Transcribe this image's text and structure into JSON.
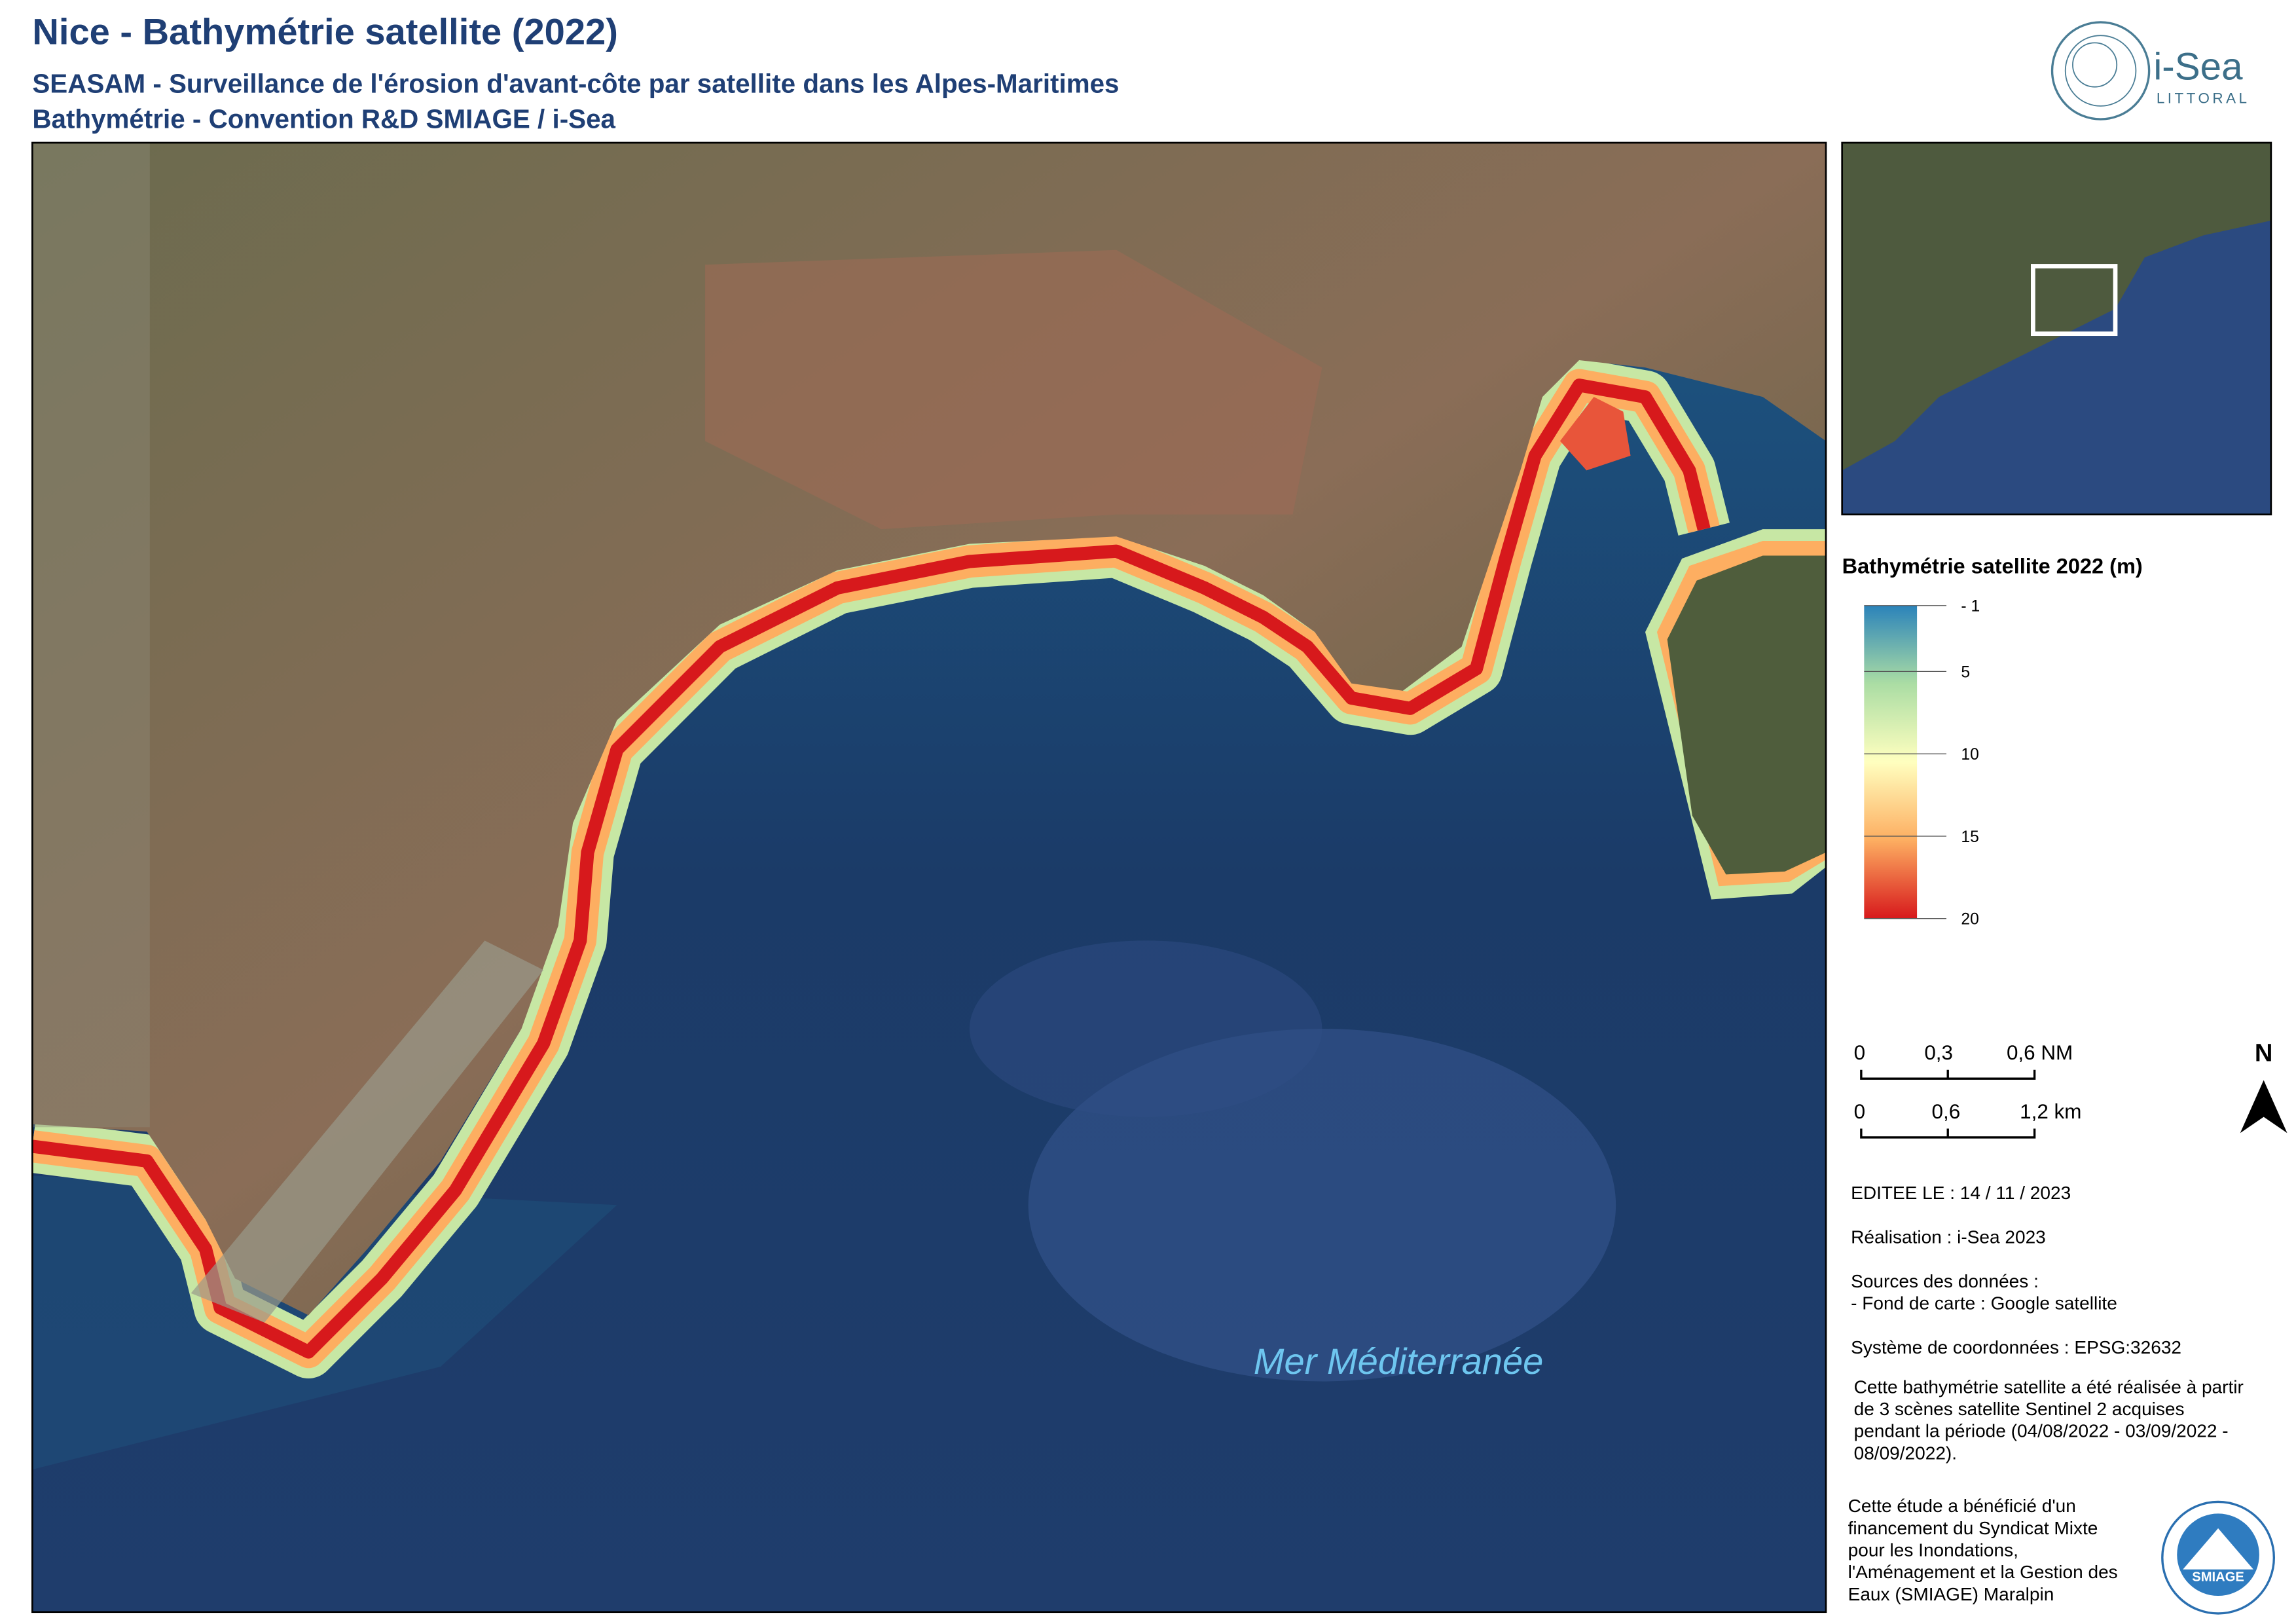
{
  "header": {
    "title": "Nice - Bathymétrie satellite (2022)",
    "subtitle_1": "SEASAM - Surveillance de l'érosion d'avant-côte par satellite dans les Alpes-Maritimes",
    "subtitle_2": "Bathymétrie - Convention R&D SMIAGE / i-Sea"
  },
  "logo": {
    "name": "i-Sea",
    "tagline": "LITTORAL"
  },
  "map": {
    "sea_label": "Mer Méditerranée"
  },
  "legend": {
    "title": "Bathymétrie satellite 2022 (m)",
    "clim": [
      1,
      20
    ],
    "colormap": [
      "#2b83ba",
      "#abdda4",
      "#ffffbf",
      "#fdae61",
      "#d7191c"
    ],
    "ticks": [
      {
        "value": 1,
        "label": "- 1"
      },
      5,
      10,
      15,
      20
    ]
  },
  "scale_bars": [
    {
      "labels": [
        "0",
        "0,3",
        "0,6 NM"
      ]
    },
    {
      "labels": [
        "0",
        "0,6",
        "1,2 km"
      ]
    }
  ],
  "north": "N",
  "notes": [
    "EDITEE LE : 14 / 11 / 2023",
    "Réalisation : i-Sea 2023",
    "Sources des données :",
    "- Fond de carte  : Google satellite",
    "Système de coordonnées : EPSG:32632",
    "Cette bathymétrie satellite a été réalisée à partir",
    "de 3 scènes satellite Sentinel 2 acquises",
    "pendant la période (04/08/2022 - 03/09/2022 -",
    "08/09/2022)."
  ],
  "funding": [
    "Cette étude a bénéficié d'un",
    "financement du Syndicat Mixte",
    "pour les Inondations,",
    "l'Aménagement et la Gestion des",
    "Eaux (SMIAGE) Maralpin"
  ],
  "partner_logo": "SMIAGE"
}
